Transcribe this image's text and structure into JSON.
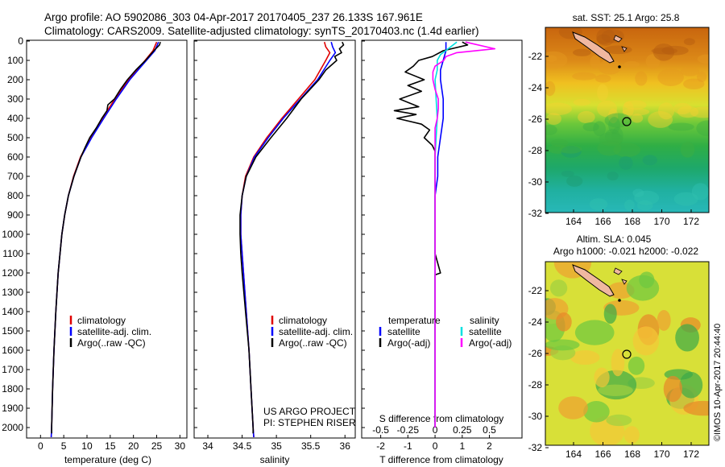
{
  "header": {
    "line1": "Argo profile: AO 5902086_303 04-Apr-2017 20170405_237 26.133S 167.961E",
    "line2": "Climatology: CARS2009. Satellite-adjusted climatology: synTS_20170403.nc (1.4d earlier)"
  },
  "colors": {
    "climatology": "#e00000",
    "satellite": "#0000ff",
    "argo": "#000000",
    "satellite_s": "#00e0e0",
    "argo_s": "#ff00ff"
  },
  "depth_ticks": [
    "0",
    "100",
    "200",
    "300",
    "400",
    "500",
    "600",
    "700",
    "800",
    "900",
    "1000",
    "1100",
    "1200",
    "1300",
    "1400",
    "1500",
    "1600",
    "1700",
    "1800",
    "1900",
    "2000"
  ],
  "temperature_panel": {
    "xlabel": "temperature (deg C)",
    "xticks": [
      "0",
      "5",
      "10",
      "15",
      "20",
      "25",
      "30"
    ],
    "legend": [
      "climatology",
      "satellite-adj. clim.",
      "Argo(..raw -QC)"
    ]
  },
  "salinity_panel": {
    "xlabel": "salinity",
    "xticks": [
      "34",
      "34.5",
      "35",
      "35.5",
      "36"
    ],
    "legend": [
      "climatology",
      "satellite-adj. clim.",
      "Argo(..raw -QC)"
    ],
    "credit1": "US ARGO PROJECT",
    "credit2": "PI: STEPHEN RISER"
  },
  "difference_panel": {
    "xlabel": "T difference from climatology",
    "top_label": "S difference from climatology",
    "xticks": [
      "-2",
      "-1",
      "0",
      "1",
      "2"
    ],
    "sticks": [
      "-0.5",
      "-0.25",
      "0",
      "0.25",
      "0.5"
    ],
    "legend_t_title": "temperature",
    "legend_t": [
      "satellite",
      "Argo(-adj)"
    ],
    "legend_s_title": "salinity",
    "legend_s": [
      "satellite",
      "Argo(-adj)"
    ]
  },
  "sst_map": {
    "title": "sat. SST: 25.1  Argo: 25.8",
    "yticks": [
      "-22",
      "-24",
      "-26",
      "-28",
      "-30",
      "-32"
    ],
    "xticks": [
      "164",
      "166",
      "168",
      "170",
      "172"
    ]
  },
  "sla_map": {
    "title1": "Altim. SLA: 0.045",
    "title2": "Argo h1000: -0.021 h2000: -0.022",
    "yticks": [
      "-22",
      "-24",
      "-26",
      "-28",
      "-30",
      "-32"
    ],
    "xticks": [
      "164",
      "166",
      "168",
      "170",
      "172"
    ]
  },
  "footer_credit": "©IMOS 10-Apr-2017 20:44:40",
  "chart_data": [
    {
      "type": "line",
      "title": "",
      "xlabel": "temperature (deg C)",
      "ylabel": "",
      "xlim": [
        -3,
        31.5
      ],
      "ylim": [
        2050,
        0
      ],
      "series": [
        {
          "name": "climatology",
          "y": [
            5,
            50,
            100,
            150,
            200,
            300,
            400,
            500,
            600,
            700,
            800,
            900,
            1000,
            1200,
            1400,
            1600,
            1800,
            2000,
            2050
          ],
          "x": [
            25.0,
            24.2,
            22.5,
            20.8,
            19.0,
            16.0,
            13.3,
            10.8,
            8.6,
            7.1,
            6.0,
            5.2,
            4.6,
            3.8,
            3.3,
            2.9,
            2.6,
            2.4,
            2.3
          ]
        },
        {
          "name": "satellite-adj. clim.",
          "y": [
            5,
            50,
            100,
            150,
            200,
            300,
            400,
            500,
            600,
            700,
            800,
            900,
            1000,
            1200,
            1400,
            1600,
            1800,
            2000,
            2050
          ],
          "x": [
            25.4,
            24.6,
            22.8,
            21.0,
            19.2,
            16.3,
            13.6,
            11.0,
            8.7,
            7.2,
            6.0,
            5.2,
            4.6,
            3.8,
            3.3,
            2.9,
            2.6,
            2.4,
            2.3
          ]
        },
        {
          "name": "Argo(..raw -QC)",
          "y": [
            5,
            20,
            50,
            100,
            150,
            200,
            250,
            300,
            330,
            360,
            400,
            450,
            500,
            550,
            600,
            700,
            800,
            900,
            1000,
            1200,
            1400,
            1600,
            1800,
            2000,
            2030
          ],
          "x": [
            25.8,
            25.6,
            24.4,
            22.6,
            20.5,
            18.7,
            17.2,
            15.9,
            14.5,
            14.3,
            13.2,
            12.0,
            10.6,
            9.6,
            8.7,
            7.2,
            6.0,
            5.2,
            4.6,
            3.8,
            3.3,
            2.9,
            2.6,
            2.4,
            2.4
          ]
        }
      ]
    },
    {
      "type": "line",
      "title": "",
      "xlabel": "salinity",
      "ylabel": "",
      "xlim": [
        33.8,
        36.15
      ],
      "ylim": [
        2050,
        0
      ],
      "series": [
        {
          "name": "climatology",
          "y": [
            5,
            30,
            60,
            100,
            200,
            300,
            400,
            500,
            600,
            700,
            800,
            900,
            1000,
            1100,
            1200,
            1400,
            1600,
            1800,
            2000,
            2050
          ],
          "x": [
            35.7,
            35.72,
            35.78,
            35.72,
            35.56,
            35.32,
            35.08,
            34.86,
            34.67,
            34.55,
            34.5,
            34.48,
            34.48,
            34.5,
            34.52,
            34.56,
            34.6,
            34.63,
            34.66,
            34.67
          ]
        },
        {
          "name": "satellite-adj. clim.",
          "y": [
            5,
            30,
            60,
            100,
            200,
            300,
            400,
            500,
            600,
            700,
            800,
            900,
            1000,
            1100,
            1200,
            1400,
            1600,
            1800,
            2000,
            2050
          ],
          "x": [
            35.8,
            35.82,
            35.86,
            35.78,
            35.6,
            35.35,
            35.1,
            34.88,
            34.68,
            34.56,
            34.5,
            34.48,
            34.48,
            34.5,
            34.52,
            34.56,
            34.6,
            34.63,
            34.66,
            34.67
          ]
        },
        {
          "name": "Argo(..raw -QC)",
          "y": [
            5,
            20,
            40,
            60,
            80,
            100,
            150,
            200,
            300,
            400,
            500,
            600,
            700,
            800,
            900,
            1000,
            1100,
            1200,
            1400,
            1600,
            1800,
            2000,
            2030
          ],
          "x": [
            35.96,
            35.98,
            35.92,
            35.95,
            35.85,
            35.88,
            35.72,
            35.62,
            35.36,
            35.15,
            34.92,
            34.7,
            34.56,
            34.5,
            34.47,
            34.47,
            34.48,
            34.5,
            34.55,
            34.6,
            34.63,
            34.66,
            34.66
          ]
        }
      ]
    },
    {
      "type": "line",
      "title": "",
      "xlabel": "T difference from climatology",
      "ylabel": "",
      "xlim": [
        -2.7,
        3.2
      ],
      "ylim": [
        2050,
        0
      ],
      "series": [
        {
          "name": "temperature satellite",
          "y": [
            5,
            50,
            100,
            150,
            200,
            300,
            400,
            500,
            600,
            700,
            800,
            1000,
            1500,
            2000
          ],
          "x": [
            0.4,
            0.4,
            0.3,
            0.2,
            0.2,
            0.3,
            0.3,
            0.2,
            0.1,
            0.1,
            0.0,
            0.0,
            0.0,
            0.0
          ]
        },
        {
          "name": "temperature Argo(-adj)",
          "y": [
            5,
            20,
            50,
            80,
            100,
            130,
            160,
            200,
            230,
            260,
            300,
            340,
            360,
            380,
            400,
            430,
            460,
            500,
            540,
            570,
            600,
            700,
            800,
            1000,
            1100,
            1200,
            1210,
            1400,
            1800,
            2000
          ],
          "x": [
            1.0,
            1.2,
            0.3,
            -0.1,
            -0.6,
            -0.8,
            -1.1,
            -0.4,
            -1.0,
            -0.5,
            -1.3,
            -0.6,
            -1.5,
            -0.7,
            -1.4,
            -0.5,
            -0.2,
            -0.4,
            -0.1,
            0.0,
            0.0,
            0.0,
            0.0,
            0.0,
            0.0,
            0.2,
            0.0,
            0.0,
            0.0,
            0.0
          ]
        },
        {
          "name": "salinity satellite",
          "y": [
            5,
            40,
            70,
            100,
            150,
            200,
            300,
            400,
            500,
            600,
            800,
            1200,
            2000
          ],
          "x": [
            0.2,
            0.12,
            0.05,
            0.02,
            0.02,
            0.0,
            0.01,
            0.02,
            0.01,
            0.0,
            0.0,
            0.0,
            0.0
          ]
        },
        {
          "name": "salinity Argo(-adj)",
          "y": [
            5,
            40,
            60,
            80,
            100,
            130,
            160,
            200,
            250,
            300,
            350,
            400,
            450,
            500,
            550,
            600,
            700,
            800,
            1000,
            1100,
            1200,
            1400,
            2000
          ],
          "x": [
            0.28,
            0.55,
            0.2,
            0.1,
            0.08,
            0.0,
            -0.02,
            -0.02,
            0.0,
            0.03,
            0.03,
            0.02,
            0.0,
            0.0,
            0.0,
            0.0,
            0.0,
            0.0,
            0.0,
            0.0,
            0.0,
            0.0,
            0.0
          ]
        }
      ]
    }
  ]
}
